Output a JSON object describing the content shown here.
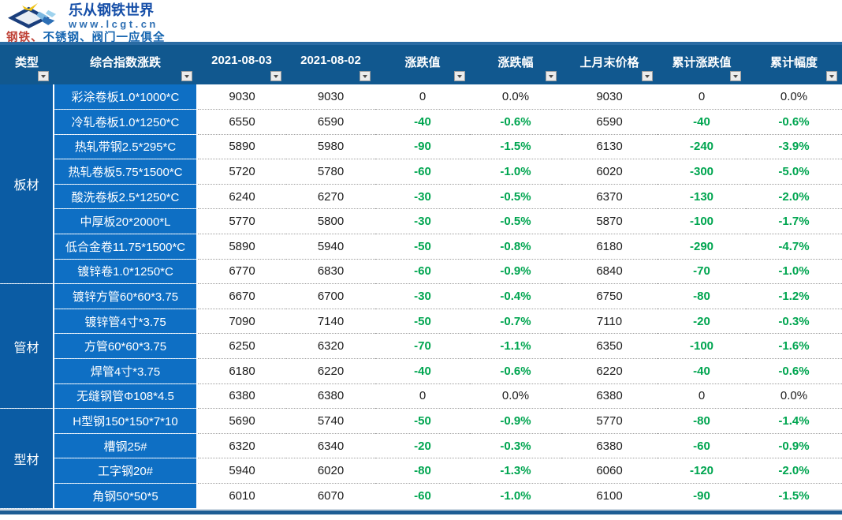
{
  "brand": {
    "title": "乐从钢铁世界",
    "url": "www.lcgt.cn",
    "tagline_part1": "钢铁、",
    "tagline_part2": "不锈钢、阀门一应俱全"
  },
  "colors": {
    "header_bg": "#11588f",
    "category_bg": "#0b5ca4",
    "name_bg": "#0e6fc4",
    "negative_green": "#00a550",
    "brand_blue": "#164fa8",
    "tagline_red": "#bf4136"
  },
  "table": {
    "headers": [
      "类型",
      "综合指数涨跌",
      "2021-08-03",
      "2021-08-02",
      "涨跌值",
      "涨跌幅",
      "上月末价格",
      "累计涨跌值",
      "累计幅度"
    ],
    "groups": [
      {
        "category": "板材",
        "rows": [
          {
            "name": "彩涂卷板1.0*1000*C",
            "d0803": "9030",
            "d0802": "9030",
            "chg": "0",
            "chgPct": "0.0%",
            "prevMonth": "9030",
            "cumChg": "0",
            "cumPct": "0.0%"
          },
          {
            "name": "冷轧卷板1.0*1250*C",
            "d0803": "6550",
            "d0802": "6590",
            "chg": "-40",
            "chgPct": "-0.6%",
            "prevMonth": "6590",
            "cumChg": "-40",
            "cumPct": "-0.6%"
          },
          {
            "name": "热轧带钢2.5*295*C",
            "d0803": "5890",
            "d0802": "5980",
            "chg": "-90",
            "chgPct": "-1.5%",
            "prevMonth": "6130",
            "cumChg": "-240",
            "cumPct": "-3.9%"
          },
          {
            "name": "热轧卷板5.75*1500*C",
            "d0803": "5720",
            "d0802": "5780",
            "chg": "-60",
            "chgPct": "-1.0%",
            "prevMonth": "6020",
            "cumChg": "-300",
            "cumPct": "-5.0%"
          },
          {
            "name": "酸洗卷板2.5*1250*C",
            "d0803": "6240",
            "d0802": "6270",
            "chg": "-30",
            "chgPct": "-0.5%",
            "prevMonth": "6370",
            "cumChg": "-130",
            "cumPct": "-2.0%"
          },
          {
            "name": "中厚板20*2000*L",
            "d0803": "5770",
            "d0802": "5800",
            "chg": "-30",
            "chgPct": "-0.5%",
            "prevMonth": "5870",
            "cumChg": "-100",
            "cumPct": "-1.7%"
          },
          {
            "name": "低合金卷11.75*1500*C",
            "d0803": "5890",
            "d0802": "5940",
            "chg": "-50",
            "chgPct": "-0.8%",
            "prevMonth": "6180",
            "cumChg": "-290",
            "cumPct": "-4.7%"
          },
          {
            "name": "镀锌卷1.0*1250*C",
            "d0803": "6770",
            "d0802": "6830",
            "chg": "-60",
            "chgPct": "-0.9%",
            "prevMonth": "6840",
            "cumChg": "-70",
            "cumPct": "-1.0%"
          }
        ]
      },
      {
        "category": "管材",
        "rows": [
          {
            "name": "镀锌方管60*60*3.75",
            "d0803": "6670",
            "d0802": "6700",
            "chg": "-30",
            "chgPct": "-0.4%",
            "prevMonth": "6750",
            "cumChg": "-80",
            "cumPct": "-1.2%"
          },
          {
            "name": "镀锌管4寸*3.75",
            "d0803": "7090",
            "d0802": "7140",
            "chg": "-50",
            "chgPct": "-0.7%",
            "prevMonth": "7110",
            "cumChg": "-20",
            "cumPct": "-0.3%"
          },
          {
            "name": "方管60*60*3.75",
            "d0803": "6250",
            "d0802": "6320",
            "chg": "-70",
            "chgPct": "-1.1%",
            "prevMonth": "6350",
            "cumChg": "-100",
            "cumPct": "-1.6%"
          },
          {
            "name": "焊管4寸*3.75",
            "d0803": "6180",
            "d0802": "6220",
            "chg": "-40",
            "chgPct": "-0.6%",
            "prevMonth": "6220",
            "cumChg": "-40",
            "cumPct": "-0.6%"
          },
          {
            "name": "无缝钢管Φ108*4.5",
            "d0803": "6380",
            "d0802": "6380",
            "chg": "0",
            "chgPct": "0.0%",
            "prevMonth": "6380",
            "cumChg": "0",
            "cumPct": "0.0%"
          }
        ]
      },
      {
        "category": "型材",
        "rows": [
          {
            "name": "H型钢150*150*7*10",
            "d0803": "5690",
            "d0802": "5740",
            "chg": "-50",
            "chgPct": "-0.9%",
            "prevMonth": "5770",
            "cumChg": "-80",
            "cumPct": "-1.4%"
          },
          {
            "name": "槽钢25#",
            "d0803": "6320",
            "d0802": "6340",
            "chg": "-20",
            "chgPct": "-0.3%",
            "prevMonth": "6380",
            "cumChg": "-60",
            "cumPct": "-0.9%"
          },
          {
            "name": "工字钢20#",
            "d0803": "5940",
            "d0802": "6020",
            "chg": "-80",
            "chgPct": "-1.3%",
            "prevMonth": "6060",
            "cumChg": "-120",
            "cumPct": "-2.0%"
          },
          {
            "name": "角钢50*50*5",
            "d0803": "6010",
            "d0802": "6070",
            "chg": "-60",
            "chgPct": "-1.0%",
            "prevMonth": "6100",
            "cumChg": "-90",
            "cumPct": "-1.5%"
          }
        ]
      }
    ]
  }
}
